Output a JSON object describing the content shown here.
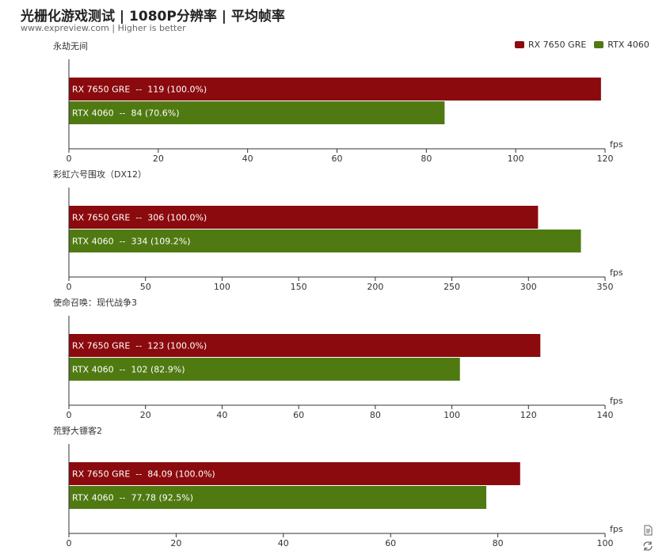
{
  "title": "光栅化游戏测试 | 1080P分辨率 | 平均帧率",
  "subtitle": "www.expreview.com | Higher is better",
  "colors": {
    "rx7650gre": "#8b0a0e",
    "rtx4060": "#4f7a12"
  },
  "legend": [
    {
      "name": "RX 7650 GRE",
      "color": "#8b0a0e"
    },
    {
      "name": "RTX 4060",
      "color": "#4f7a12"
    }
  ],
  "toolbox": {
    "icons": [
      "data-view-icon",
      "restore-icon"
    ]
  },
  "chart_data": [
    {
      "type": "bar",
      "orientation": "horizontal",
      "title": "永劫无间",
      "xlabel": "fps",
      "xlim": [
        0,
        120
      ],
      "ticks": [
        0,
        20,
        40,
        60,
        80,
        100,
        120
      ],
      "series": [
        {
          "name": "RX 7650 GRE",
          "value": 119,
          "label": "RX 7650 GRE  --  119 (100.0%)"
        },
        {
          "name": "RTX 4060",
          "value": 84,
          "label": "RTX 4060  --  84 (70.6%)"
        }
      ]
    },
    {
      "type": "bar",
      "orientation": "horizontal",
      "title": "彩虹六号围攻（DX12）",
      "xlabel": "fps",
      "xlim": [
        0,
        350
      ],
      "ticks": [
        0,
        50,
        100,
        150,
        200,
        250,
        300,
        350
      ],
      "series": [
        {
          "name": "RX 7650 GRE",
          "value": 306,
          "label": "RX 7650 GRE  --  306 (100.0%)"
        },
        {
          "name": "RTX 4060",
          "value": 334,
          "label": "RTX 4060  --  334 (109.2%)"
        }
      ]
    },
    {
      "type": "bar",
      "orientation": "horizontal",
      "title": "使命召唤：现代战争3",
      "xlabel": "fps",
      "xlim": [
        0,
        140
      ],
      "ticks": [
        0,
        20,
        40,
        60,
        80,
        100,
        120,
        140
      ],
      "series": [
        {
          "name": "RX 7650 GRE",
          "value": 123,
          "label": "RX 7650 GRE  --  123 (100.0%)"
        },
        {
          "name": "RTX 4060",
          "value": 102,
          "label": "RTX 4060  --  102 (82.9%)"
        }
      ]
    },
    {
      "type": "bar",
      "orientation": "horizontal",
      "title": "荒野大镖客2",
      "xlabel": "fps",
      "xlim": [
        0,
        100
      ],
      "ticks": [
        0,
        20,
        40,
        60,
        80,
        100
      ],
      "series": [
        {
          "name": "RX 7650 GRE",
          "value": 84.09,
          "label": "RX 7650 GRE  --  84.09 (100.0%)"
        },
        {
          "name": "RTX 4060",
          "value": 77.78,
          "label": "RTX 4060  --  77.78 (92.5%)"
        }
      ]
    }
  ]
}
